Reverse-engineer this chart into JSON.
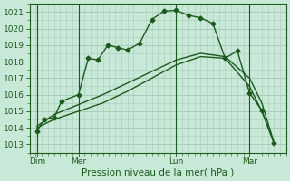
{
  "xlabel": "Pression niveau de la mer( hPa )",
  "bg_color": "#c8e8d8",
  "plot_bg_color": "#c8e8d8",
  "grid_color": "#aaccbb",
  "line_color": "#1a5c1a",
  "ylim": [
    1012.5,
    1021.5
  ],
  "xlim": [
    0,
    10.5
  ],
  "yticks": [
    1013,
    1014,
    1015,
    1016,
    1017,
    1018,
    1019,
    1020,
    1021
  ],
  "xtick_labels": [
    "Dim",
    "Mer",
    "Lun",
    "Mar"
  ],
  "xtick_positions": [
    0.3,
    2.0,
    6.0,
    9.0
  ],
  "vline_positions": [
    0.3,
    2.0,
    6.0,
    9.0
  ],
  "series1_x": [
    0.3,
    0.6,
    1.0,
    1.3,
    2.0,
    2.4,
    2.8,
    3.2,
    3.6,
    4.0,
    4.5,
    5.0,
    5.5,
    6.0,
    6.5,
    7.0,
    7.5,
    8.0,
    8.5,
    9.0,
    9.5,
    10.0
  ],
  "series1_y": [
    1013.8,
    1014.5,
    1014.6,
    1015.6,
    1016.0,
    1018.2,
    1018.1,
    1019.0,
    1018.85,
    1018.7,
    1019.1,
    1020.55,
    1021.05,
    1021.1,
    1020.8,
    1020.65,
    1020.3,
    1018.2,
    1018.65,
    1016.1,
    1015.05,
    1013.05
  ],
  "series2_x": [
    0.3,
    1.0,
    2.0,
    3.0,
    4.0,
    5.0,
    6.0,
    7.0,
    8.0,
    9.0,
    9.5,
    10.0
  ],
  "series2_y": [
    1014.0,
    1014.5,
    1015.0,
    1015.5,
    1016.2,
    1017.0,
    1017.8,
    1018.3,
    1018.2,
    1016.5,
    1015.0,
    1013.1
  ],
  "series3_x": [
    0.3,
    1.0,
    2.0,
    3.0,
    4.0,
    5.0,
    6.0,
    7.0,
    8.0,
    9.0,
    9.5,
    10.0
  ],
  "series3_y": [
    1014.1,
    1014.8,
    1015.4,
    1016.0,
    1016.7,
    1017.4,
    1018.1,
    1018.5,
    1018.3,
    1017.0,
    1015.5,
    1013.1
  ],
  "marker_size": 2.5,
  "linewidth": 1.0,
  "xlabel_fontsize": 7.5,
  "tick_fontsize": 6.5
}
